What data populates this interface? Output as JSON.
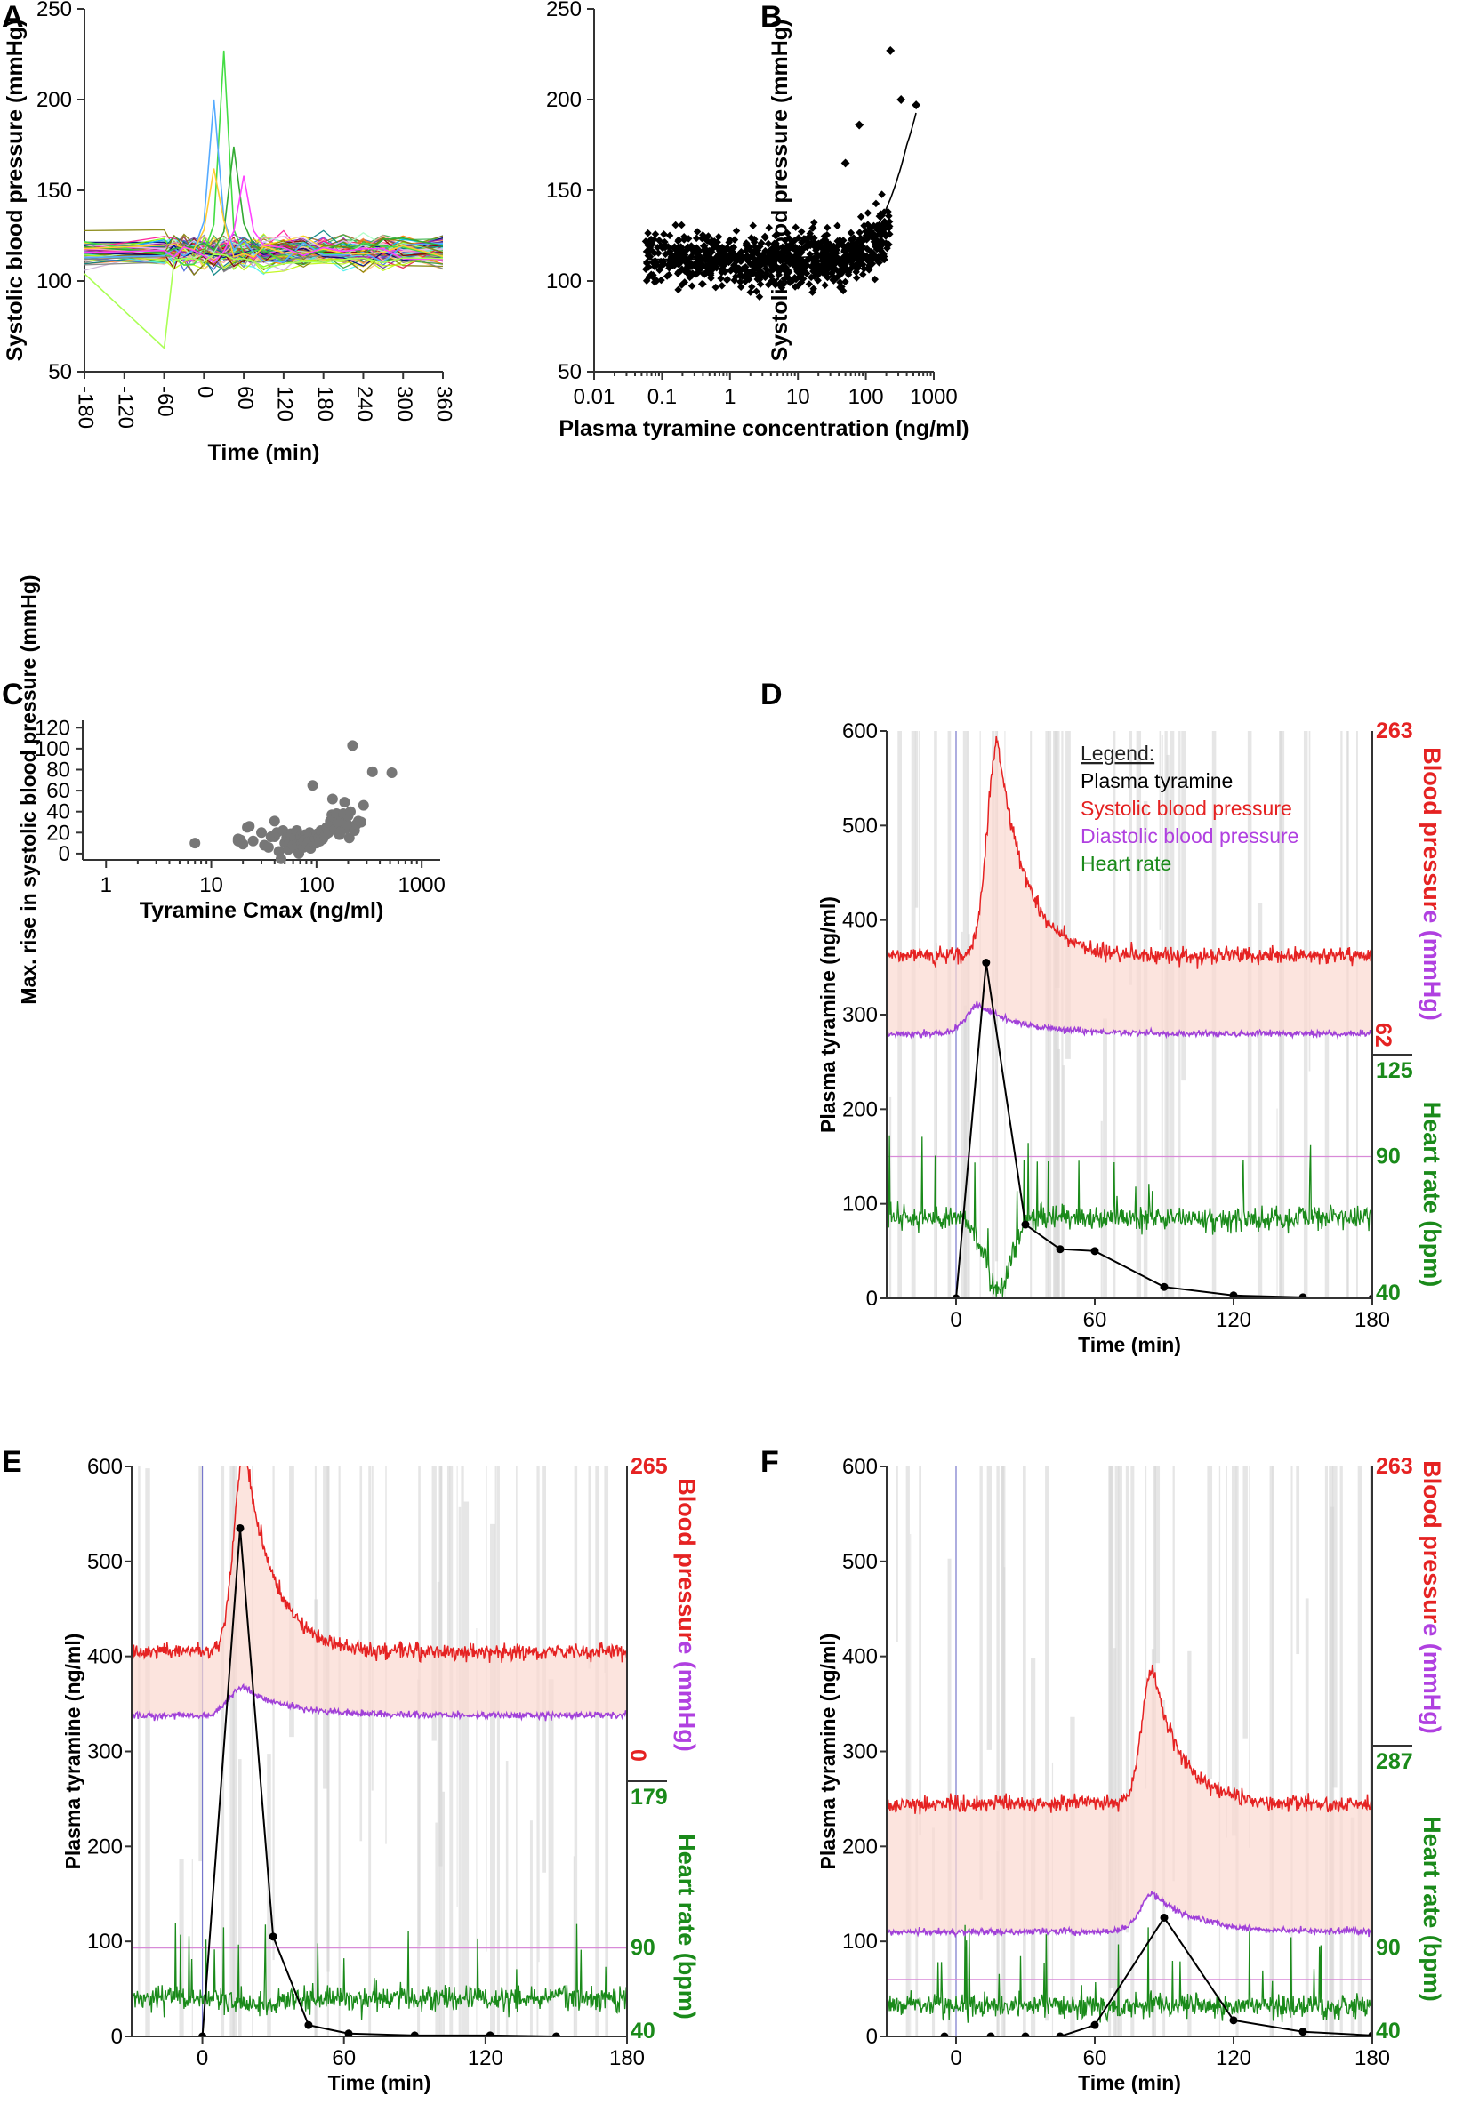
{
  "figure": {
    "panel_labels": [
      "A",
      "B",
      "C",
      "D",
      "E",
      "F"
    ]
  },
  "chart_data": [
    {
      "panel": "A",
      "type": "line",
      "title": "",
      "xlabel": "Time (min)",
      "ylabel": "Systolic blood pressure (mmHg)",
      "xlim": [
        -180,
        360
      ],
      "ylim": [
        50,
        250
      ],
      "x_ticks": [
        "-180",
        "-120",
        "-60",
        "0",
        "60",
        "120",
        "180",
        "240",
        "300",
        "360"
      ],
      "y_ticks": [
        "50",
        "100",
        "150",
        "200",
        "250"
      ],
      "x": [
        -180,
        -60,
        -45,
        -30,
        -15,
        0,
        15,
        30,
        45,
        60,
        75,
        90,
        120,
        150,
        180,
        210,
        240,
        270,
        300,
        360
      ],
      "series_count": 78,
      "baseline_mean": 116,
      "peaks": [
        {
          "x": 30,
          "y": 227,
          "color": "#44dd44"
        },
        {
          "x": 15,
          "y": 200,
          "color": "#55aaff"
        },
        {
          "x": 45,
          "y": 174,
          "color": "#33aa33"
        },
        {
          "x": 15,
          "y": 162,
          "color": "#ffcc33"
        },
        {
          "x": 60,
          "y": 158,
          "color": "#ff44ff"
        }
      ],
      "low_excursion": {
        "x": -60,
        "y": 63,
        "color": "#aaff55"
      },
      "colors": [
        "#e6194b",
        "#3cb44b",
        "#ffe119",
        "#4363d8",
        "#f58231",
        "#911eb4",
        "#46f0f0",
        "#f032e6",
        "#bcf60c",
        "#fabebe",
        "#008080",
        "#e6beff",
        "#9a6324",
        "#800000",
        "#aaffc3",
        "#808000",
        "#000075",
        "#808080",
        "#ff7f00",
        "#1f78b4",
        "#33a02c",
        "#6a3d9a",
        "#b15928",
        "#a6cee3",
        "#fb9a99",
        "#fdbf6f",
        "#cab2d6",
        "#00bfff",
        "#ff1493",
        "#7cfc00"
      ]
    },
    {
      "panel": "B",
      "type": "scatter",
      "xlabel": "Plasma tyramine concentration (ng/ml)",
      "ylabel": "Systolic blood pressure (mmHg)",
      "xscale": "log",
      "xlim": [
        0.01,
        1000
      ],
      "ylim": [
        50,
        250
      ],
      "x_ticks": [
        "0.01",
        "0.1",
        "1",
        "10",
        "100",
        "1000"
      ],
      "y_ticks": [
        "50",
        "100",
        "150",
        "200",
        "250"
      ],
      "n_points": 900,
      "fit_curve": {
        "baseline": 112,
        "x": [
          0.06,
          1,
          10,
          50,
          100,
          200,
          300,
          400,
          550
        ],
        "y": [
          112,
          112,
          113,
          116,
          122,
          140,
          158,
          175,
          193
        ]
      },
      "highlights": [
        [
          230,
          227
        ],
        [
          330,
          200
        ],
        [
          550,
          197
        ],
        [
          80,
          186
        ],
        [
          50,
          165
        ]
      ]
    },
    {
      "panel": "C",
      "type": "scatter",
      "xlabel": "Tyramine Cmax (ng/ml)",
      "ylabel": "Max. rise in systolic blood pressure (mmHg)",
      "xscale": "log",
      "xlim": [
        0.6,
        1500
      ],
      "ylim": [
        -6,
        127
      ],
      "x_ticks": [
        "1",
        "10",
        "100",
        "1000"
      ],
      "y_ticks": [
        "0",
        "20",
        "40",
        "60",
        "80",
        "100",
        "120"
      ],
      "marker_color": "#777777",
      "points": [
        [
          7,
          10
        ],
        [
          18,
          14
        ],
        [
          18,
          12
        ],
        [
          19,
          13
        ],
        [
          20,
          9
        ],
        [
          22,
          25
        ],
        [
          23,
          26
        ],
        [
          25,
          12
        ],
        [
          30,
          20
        ],
        [
          32,
          8
        ],
        [
          35,
          6
        ],
        [
          37,
          16
        ],
        [
          40,
          16
        ],
        [
          40,
          31
        ],
        [
          42,
          20
        ],
        [
          44,
          2
        ],
        [
          46,
          -5
        ],
        [
          48,
          22
        ],
        [
          50,
          10
        ],
        [
          52,
          15
        ],
        [
          54,
          4
        ],
        [
          55,
          12
        ],
        [
          57,
          19
        ],
        [
          58,
          17
        ],
        [
          60,
          8
        ],
        [
          62,
          15
        ],
        [
          64,
          5
        ],
        [
          65,
          22
        ],
        [
          66,
          11
        ],
        [
          68,
          0
        ],
        [
          70,
          13
        ],
        [
          71,
          17
        ],
        [
          72,
          10
        ],
        [
          74,
          15
        ],
        [
          75,
          6
        ],
        [
          76,
          12
        ],
        [
          78,
          18
        ],
        [
          80,
          14
        ],
        [
          82,
          9
        ],
        [
          84,
          16
        ],
        [
          85,
          12
        ],
        [
          86,
          20
        ],
        [
          88,
          5
        ],
        [
          90,
          13
        ],
        [
          92,
          65
        ],
        [
          94,
          11
        ],
        [
          96,
          17
        ],
        [
          98,
          14
        ],
        [
          100,
          10
        ],
        [
          102,
          19
        ],
        [
          105,
          15
        ],
        [
          108,
          12
        ],
        [
          110,
          22
        ],
        [
          115,
          14
        ],
        [
          120,
          17
        ],
        [
          125,
          25
        ],
        [
          130,
          20
        ],
        [
          135,
          31
        ],
        [
          140,
          37
        ],
        [
          142,
          52
        ],
        [
          145,
          35
        ],
        [
          150,
          23
        ],
        [
          155,
          38
        ],
        [
          160,
          30
        ],
        [
          165,
          18
        ],
        [
          170,
          21
        ],
        [
          175,
          32
        ],
        [
          180,
          38
        ],
        [
          185,
          49
        ],
        [
          190,
          24
        ],
        [
          195,
          28
        ],
        [
          200,
          36
        ],
        [
          205,
          15
        ],
        [
          210,
          40
        ],
        [
          220,
          103
        ],
        [
          230,
          22
        ],
        [
          240,
          28
        ],
        [
          250,
          31
        ],
        [
          265,
          30
        ],
        [
          280,
          46
        ],
        [
          340,
          78
        ],
        [
          520,
          77
        ]
      ]
    },
    {
      "panel": "D",
      "type": "line",
      "xlabel": "Time (min)",
      "ylabel": "Plasma tyramine (ng/ml)",
      "right_label_bp": "Blood pressure (mmHg)",
      "right_label_hr": "Heart rate (bpm)",
      "xlim": [
        -30,
        180
      ],
      "ylim": [
        0,
        600
      ],
      "x_ticks": [
        "0",
        "60",
        "120",
        "180"
      ],
      "y_ticks": [
        "0",
        "100",
        "200",
        "300",
        "400",
        "500",
        "600"
      ],
      "bp_axis": {
        "top": "263",
        "bottom": "62"
      },
      "hr_axis": {
        "top": "125",
        "mid": "90",
        "bottom": "40"
      },
      "legend": {
        "title": "Legend:",
        "items": [
          "Plasma tyramine",
          "Systolic blood pressure",
          "Diastolic blood pressure",
          "Heart rate"
        ]
      },
      "tyramine": {
        "x": [
          0,
          13,
          30,
          45,
          60,
          90,
          120,
          150,
          180
        ],
        "y": [
          0,
          355,
          78,
          52,
          50,
          12,
          3,
          1,
          0
        ]
      },
      "sys_base": 362,
      "sys_peak": 590,
      "sys_peak_x": 18,
      "dia_base": 280,
      "dia_peak": 310,
      "dia_peak_x": 10,
      "hr_base": 85,
      "hr_dip": 10,
      "hr_dip_x": 18,
      "ref_line": 150
    },
    {
      "panel": "E",
      "type": "line",
      "xlabel": "Time (min)",
      "ylabel": "Plasma tyramine (ng/ml)",
      "right_label_bp": "Blood pressure (mmHg)",
      "right_label_hr": "Heart rate (bpm)",
      "xlim": [
        -30,
        180
      ],
      "ylim": [
        0,
        600
      ],
      "x_ticks": [
        "0",
        "60",
        "120",
        "180"
      ],
      "y_ticks": [
        "0",
        "100",
        "200",
        "300",
        "400",
        "500",
        "600"
      ],
      "bp_axis": {
        "top": "265",
        "bottom": "0"
      },
      "hr_axis": {
        "top": "179",
        "mid": "90",
        "bottom": "40"
      },
      "tyramine": {
        "x": [
          0,
          16,
          30,
          45,
          62,
          90,
          122,
          150
        ],
        "y": [
          0,
          535,
          105,
          12,
          3,
          1,
          1,
          0
        ]
      },
      "sys_base": 405,
      "sys_peak": 620,
      "sys_peak_x": 18,
      "dia_base": 338,
      "dia_peak": 368,
      "dia_peak_x": 17,
      "hr_base": 40,
      "hr_dip": 30,
      "hr_dip_x": 25,
      "ref_line": 93
    },
    {
      "panel": "F",
      "type": "line",
      "xlabel": "Time (min)",
      "ylabel": "Plasma tyramine (ng/ml)",
      "right_label_bp": "Blood pressure (mmHg)",
      "right_label_hr": "Heart rate (bpm)",
      "xlim": [
        -30,
        180
      ],
      "ylim": [
        0,
        600
      ],
      "x_ticks": [
        "0",
        "60",
        "120",
        "180"
      ],
      "y_ticks": [
        "0",
        "100",
        "200",
        "300",
        "400",
        "500",
        "600"
      ],
      "bp_axis": {
        "top": "263",
        "bottom": ""
      },
      "hr_axis": {
        "top": "287",
        "mid": "90",
        "bottom": "40"
      },
      "tyramine": {
        "x": [
          -5,
          15,
          30,
          45,
          60,
          90,
          120,
          150,
          180
        ],
        "y": [
          0,
          0,
          0,
          0,
          12,
          125,
          17,
          5,
          1
        ]
      },
      "sys_base": 245,
      "sys_peak": 390,
      "sys_peak_x": 85,
      "dia_base": 110,
      "dia_peak": 150,
      "dia_peak_x": 85,
      "hr_base": 32,
      "hr_dip": 32,
      "hr_dip_x": 85,
      "ref_line": 60
    }
  ]
}
